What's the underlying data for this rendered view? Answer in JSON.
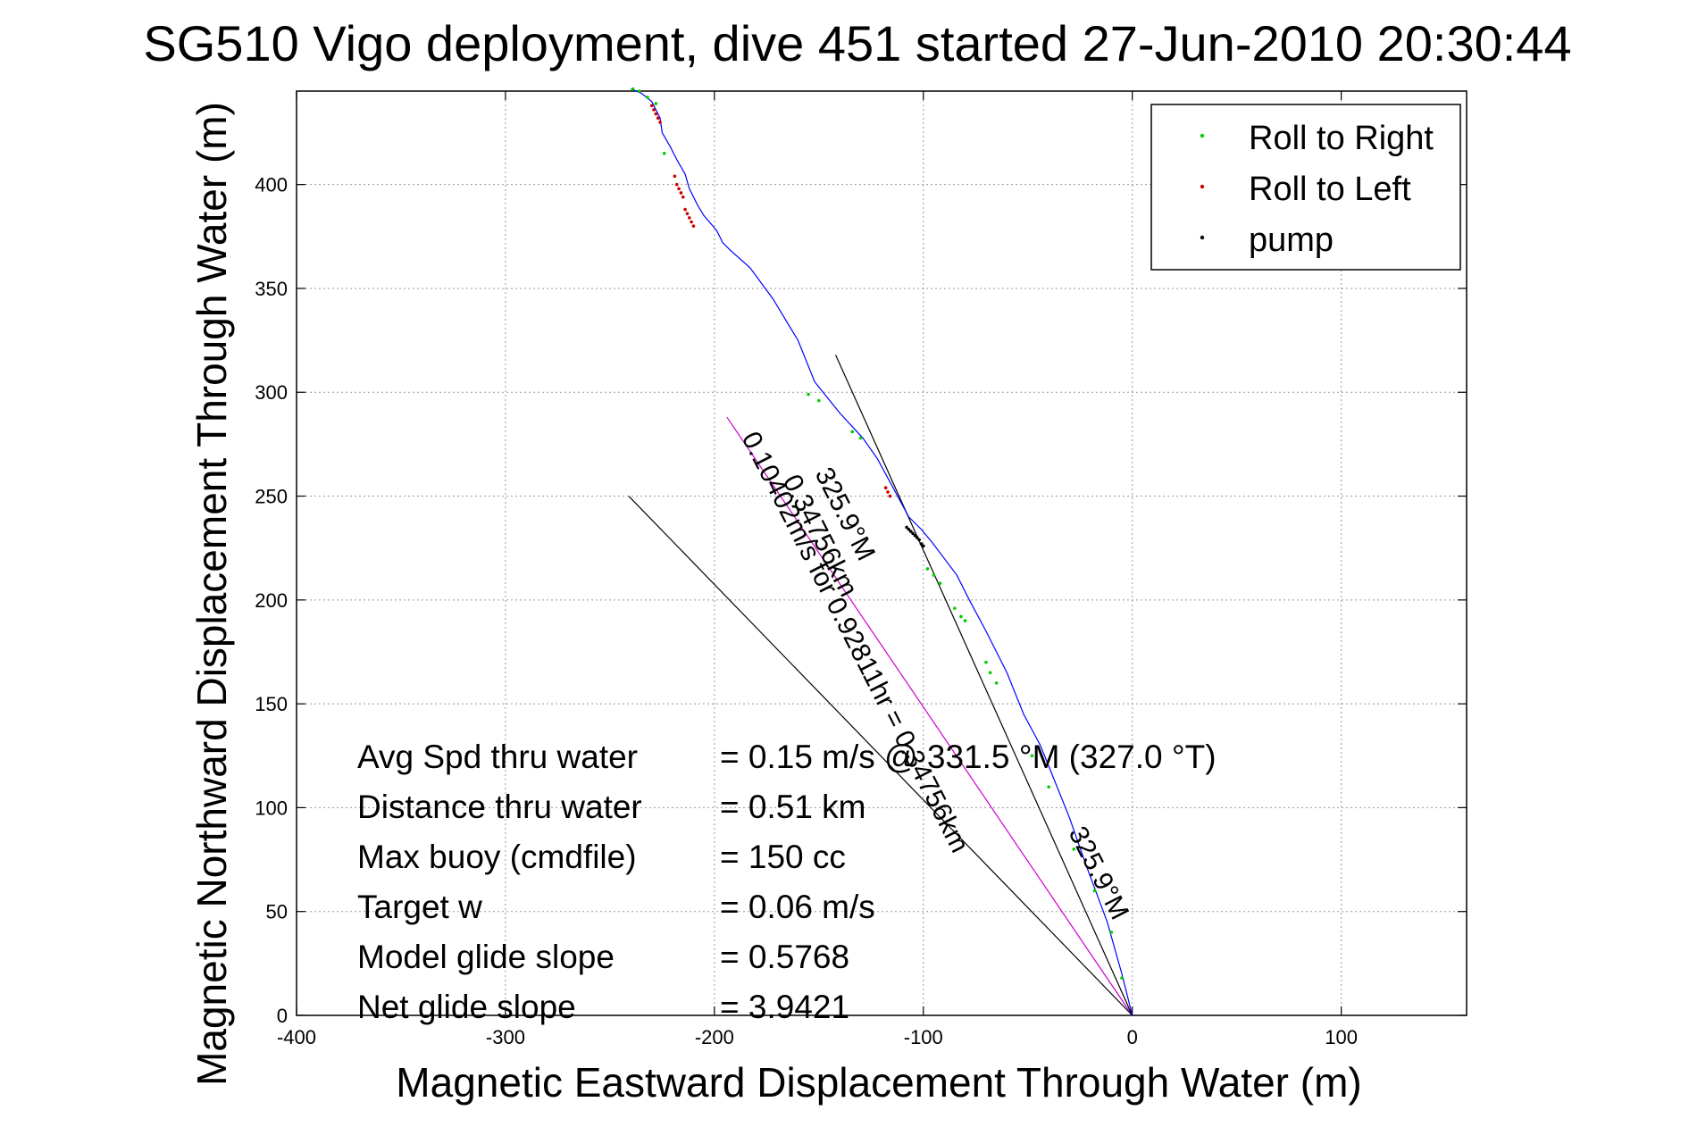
{
  "chart_data": {
    "type": "line",
    "title": "SG510 Vigo deployment, dive 451 started 27-Jun-2010 20:30:44",
    "xlabel": "Magnetic Eastward Displacement Through Water (m)",
    "ylabel": "Magnetic Northward Displacement Through Water (m)",
    "xlim": [
      -400,
      160
    ],
    "ylim": [
      0,
      445
    ],
    "xticks": [
      -400,
      -300,
      -200,
      -100,
      0,
      100
    ],
    "yticks": [
      0,
      50,
      100,
      150,
      200,
      250,
      300,
      350,
      400
    ],
    "grid": true,
    "legend_position": "top-right",
    "colors": {
      "track": "#0000ff",
      "roll_right": "#00cc00",
      "roll_left": "#cc0000",
      "pump": "#000000",
      "model_line": "#cc00cc",
      "ref_line": "#000000"
    },
    "legend": [
      {
        "label": "Roll to Right",
        "color": "#00cc00"
      },
      {
        "label": "Roll to Left",
        "color": "#cc0000"
      },
      {
        "label": "pump",
        "color": "#000000"
      }
    ],
    "series": [
      {
        "name": "track",
        "x": [
          0,
          -5,
          -12,
          -22,
          -30,
          -38,
          -44,
          -52,
          -60,
          -70,
          -78,
          -84,
          -90,
          -96,
          -101,
          -107,
          -115,
          -122,
          -129,
          -140,
          -148,
          -152,
          -160,
          -172,
          -183,
          -192,
          -196,
          -199,
          -205,
          -208,
          -212,
          -214,
          -218,
          -221,
          -225,
          -226,
          -230,
          -235,
          -240
        ],
        "y": [
          0,
          20,
          45,
          72,
          95,
          115,
          130,
          145,
          165,
          185,
          200,
          212,
          220,
          228,
          234,
          240,
          255,
          268,
          278,
          290,
          300,
          305,
          325,
          345,
          360,
          368,
          372,
          378,
          385,
          390,
          398,
          405,
          412,
          418,
          425,
          432,
          440,
          444,
          446
        ]
      },
      {
        "name": "Roll to Right",
        "x": [
          -5,
          -10,
          -18,
          -28,
          -40,
          -48,
          -65,
          -68,
          -70,
          -80,
          -82,
          -85,
          -92,
          -95,
          -98,
          -130,
          -134,
          -150,
          -155,
          -224,
          -228,
          -232,
          -236,
          -239
        ],
        "y": [
          18,
          40,
          60,
          80,
          110,
          125,
          160,
          165,
          170,
          190,
          192,
          196,
          208,
          212,
          215,
          278,
          281,
          296,
          299,
          415,
          439,
          442,
          445,
          446
        ]
      },
      {
        "name": "Roll to Left",
        "x": [
          -116,
          -117,
          -118,
          -210,
          -211,
          -212,
          -213,
          -214,
          -215,
          -216,
          -217,
          -218,
          -219,
          -226,
          -227,
          -228,
          -229,
          -230
        ],
        "y": [
          250,
          252,
          254,
          380,
          382,
          384,
          386,
          388,
          394,
          396,
          398,
          400,
          404,
          430,
          432,
          434,
          436,
          438
        ]
      },
      {
        "name": "pump",
        "x": [
          -100,
          -101,
          -102,
          -103,
          -104,
          -105,
          -106,
          -107,
          -108
        ],
        "y": [
          226,
          227,
          229,
          230,
          231,
          232,
          233,
          234,
          235
        ]
      }
    ],
    "lines": [
      {
        "from": [
          0,
          0
        ],
        "to": [
          -194,
          288
        ],
        "style": "model"
      },
      {
        "from": [
          0,
          0
        ],
        "to": [
          -142,
          318
        ],
        "style": "reference"
      },
      {
        "from": [
          0,
          0
        ],
        "to": [
          -241,
          250
        ],
        "style": "reference"
      }
    ],
    "annotations": {
      "direction_label_1": "325.9°M",
      "direction_label_2": "0.34756km",
      "direction_label_3": "0.10402m/s for 0.92811hr = 0.34756km",
      "direction_label_4": "325.9°M"
    },
    "stats": [
      {
        "label": "Avg Spd thru water",
        "value": "=  0.15 m/s @ 331.5 °M (327.0 °T)"
      },
      {
        "label": "Distance thru water",
        "value": "=  0.51 km"
      },
      {
        "label": "Max buoy (cmdfile)",
        "value": "= 150 cc"
      },
      {
        "label": "Target w",
        "value": "= 0.06 m/s"
      },
      {
        "label": "Model glide slope",
        "value": "= 0.5768"
      },
      {
        "label": "Net glide slope",
        "value": "= 3.9421"
      }
    ]
  }
}
